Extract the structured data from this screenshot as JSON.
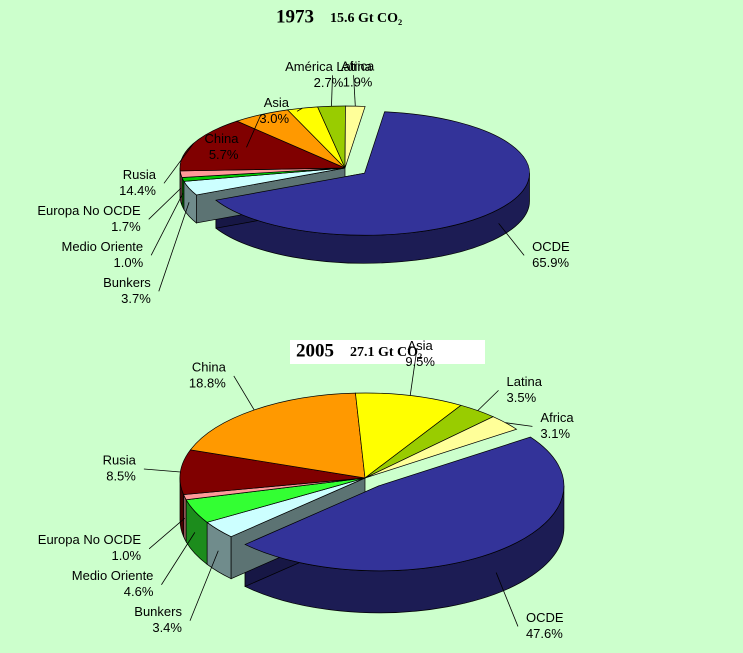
{
  "chart_data": [
    {
      "type": "pie",
      "title": "1973",
      "subtitle": "15.6 Gt CO₂",
      "categories": [
        "OCDE",
        "Bunkers",
        "Medio Oriente",
        "Europa No OCDE",
        "Rusia",
        "China",
        "Asia",
        "América Latina",
        "Africa"
      ],
      "values": [
        65.9,
        3.7,
        1.0,
        1.7,
        14.4,
        5.7,
        3.0,
        2.7,
        1.9
      ],
      "value_labels": [
        "65.9%",
        "3.7%",
        "1.0%",
        "1.7%",
        "14.4%",
        "5.7%",
        "3.0%",
        "2.7%",
        "1.9%"
      ],
      "colors": [
        "#333399",
        "#ccffff",
        "#00cc00",
        "#ff9999",
        "#800000",
        "#ff9900",
        "#ffff00",
        "#99cc00",
        "#ffff99"
      ]
    },
    {
      "type": "pie",
      "title": "2005",
      "subtitle": "27.1 Gt CO₂",
      "categories": [
        "OCDE",
        "Bunkers",
        "Medio Oriente",
        "Europa No OCDE",
        "Rusia",
        "China",
        "Asia",
        "Latina",
        "Africa"
      ],
      "values": [
        47.6,
        3.4,
        4.6,
        1.0,
        8.5,
        18.8,
        9.5,
        3.5,
        3.1
      ],
      "value_labels": [
        "47.6%",
        "3.4%",
        "4.6%",
        "1.0%",
        "8.5%",
        "18.8%",
        "9.5%",
        "3.5%",
        "3.1%"
      ],
      "colors": [
        "#333399",
        "#ccffff",
        "#33ff33",
        "#ff9999",
        "#800000",
        "#ff9900",
        "#ffff00",
        "#99cc00",
        "#ffff99"
      ]
    }
  ]
}
